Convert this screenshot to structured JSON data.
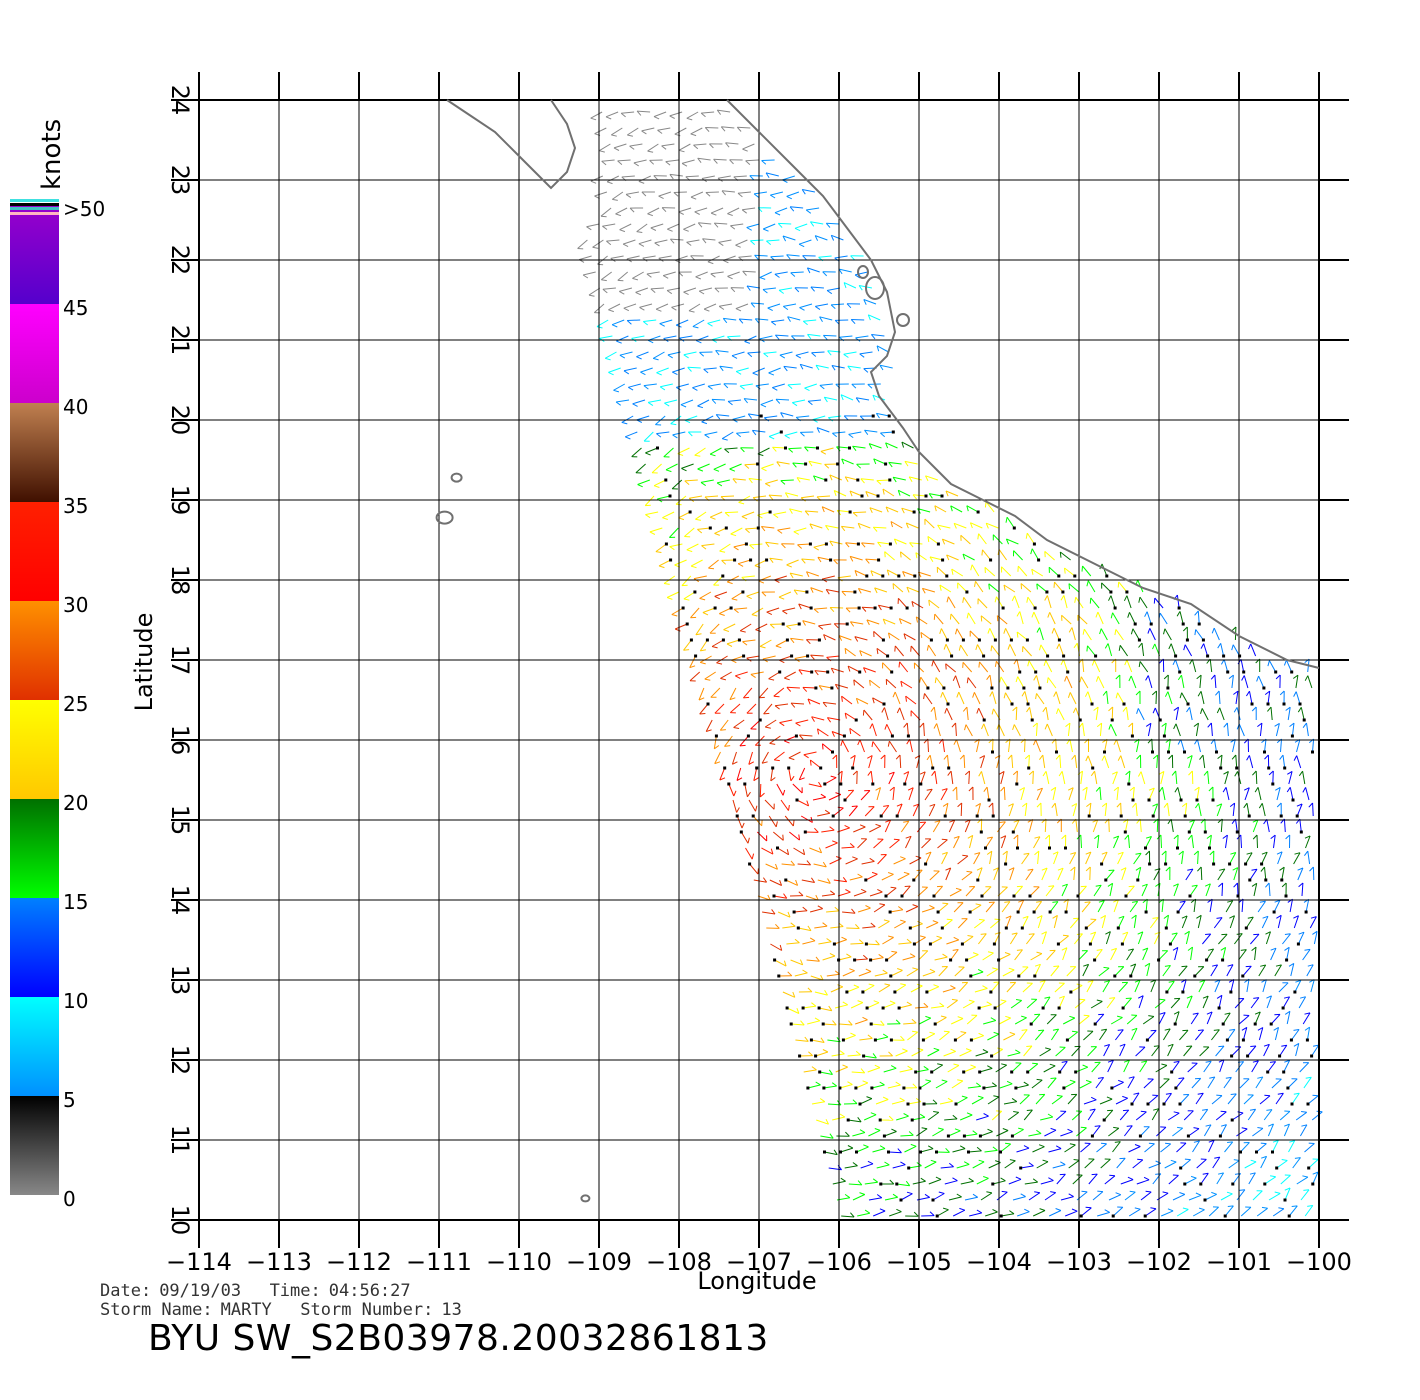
{
  "map": {
    "x_axis_label": "Longitude",
    "y_axis_label": "Latitude",
    "lon_ticks": [
      "−114",
      "−113",
      "−112",
      "−111",
      "−110",
      "−109",
      "−108",
      "−107",
      "−106",
      "−105",
      "−104",
      "−103",
      "−102",
      "−101",
      "−100"
    ],
    "lat_ticks": [
      "10",
      "11",
      "12",
      "13",
      "14",
      "15",
      "16",
      "17",
      "18",
      "19",
      "20",
      "21",
      "22",
      "23",
      "24"
    ],
    "lon_range": [
      -114,
      -100
    ],
    "lat_range": [
      10,
      24
    ],
    "grid": true,
    "coastline_color": "#707070",
    "colorbar": {
      "units": "knots",
      "labels": [
        "0",
        "5",
        "10",
        "15",
        "20",
        "25",
        "30",
        "35",
        "40",
        "45",
        ">50"
      ],
      "bands": [
        {
          "from": 0,
          "to": 5,
          "top_color": "#000000",
          "bottom_color": "#888888"
        },
        {
          "from": 5,
          "to": 10,
          "top_color": "#00ffff",
          "bottom_color": "#0090ff"
        },
        {
          "from": 10,
          "to": 15,
          "top_color": "#0080ff",
          "bottom_color": "#0000ff"
        },
        {
          "from": 15,
          "to": 20,
          "top_color": "#007000",
          "bottom_color": "#00ff00"
        },
        {
          "from": 20,
          "to": 25,
          "top_color": "#ffff00",
          "bottom_color": "#ffc800"
        },
        {
          "from": 25,
          "to": 30,
          "top_color": "#ff9000",
          "bottom_color": "#e03000"
        },
        {
          "from": 30,
          "to": 35,
          "top_color": "#ff2000",
          "bottom_color": "#ff0000"
        },
        {
          "from": 35,
          "to": 40,
          "top_color": "#c08050",
          "bottom_color": "#401000"
        },
        {
          "from": 40,
          "to": 45,
          "top_color": "#ff00ff",
          "bottom_color": "#cc00cc"
        },
        {
          "from": 45,
          "to": 50,
          "top_color": "#9900cc",
          "bottom_color": "#5500cc"
        }
      ]
    }
  },
  "info": {
    "date_label": "Date:",
    "date": "09/19/03",
    "time_label": "Time:",
    "time": "04:56:27",
    "storm_name_label": "Storm Name:",
    "storm_name": "MARTY",
    "storm_number_label": "Storm Number:",
    "storm_number": "13"
  },
  "title": "BYU  SW_S2B03978.20032861813"
}
